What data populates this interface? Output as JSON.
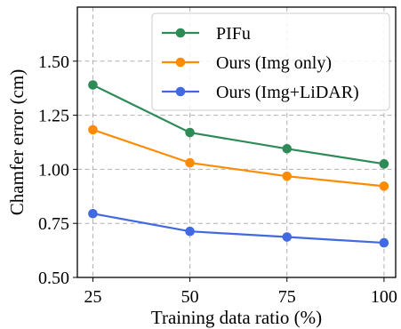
{
  "chart_data": {
    "type": "line",
    "title": "",
    "xlabel": "Training data ratio (%)",
    "ylabel": "Chamfer error (cm)",
    "x": [
      25,
      50,
      75,
      100
    ],
    "x_ticks": [
      "25",
      "50",
      "75",
      "100"
    ],
    "y_ticks": [
      "0.50",
      "0.75",
      "1.00",
      "1.25",
      "1.50"
    ],
    "xlim": [
      21,
      103
    ],
    "ylim": [
      0.5,
      1.75
    ],
    "grid": true,
    "legend_position": "top-right",
    "series": [
      {
        "name": "PIFu",
        "color": "#2e8b57",
        "values": [
          1.39,
          1.17,
          1.095,
          1.025
        ]
      },
      {
        "name": "Ours (Img only)",
        "color": "#ff8c00",
        "values": [
          1.183,
          1.03,
          0.968,
          0.922
        ]
      },
      {
        "name": "Ours (Img+LiDAR)",
        "color": "#4169e1",
        "values": [
          0.795,
          0.713,
          0.687,
          0.66
        ]
      }
    ]
  }
}
